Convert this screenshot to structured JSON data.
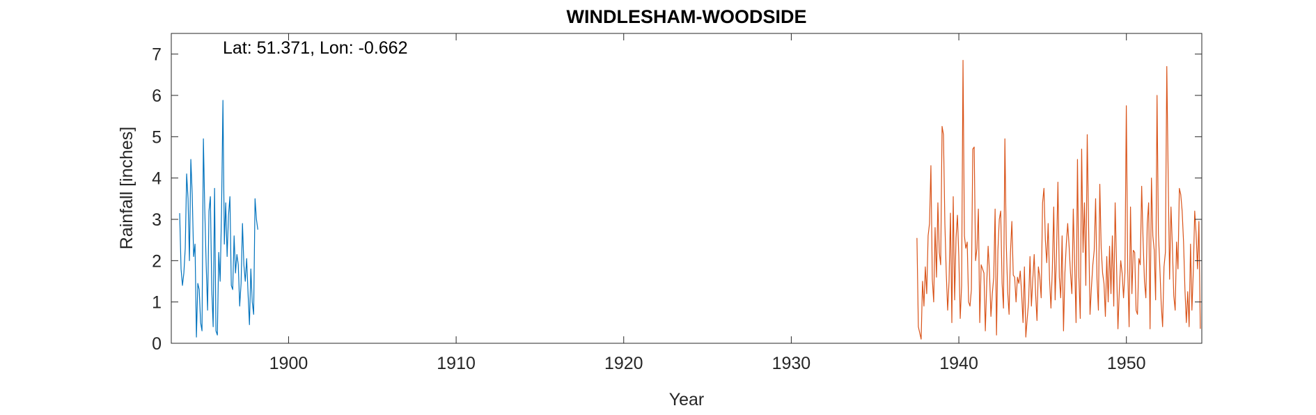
{
  "chart_data": {
    "type": "line",
    "title": "WINDLESHAM-WOODSIDE",
    "xlabel": "Year",
    "ylabel": "Rainfall [inches]",
    "annotation": "Lat: 51.371, Lon: -0.662",
    "xlim": [
      1893,
      1954.5
    ],
    "ylim": [
      0,
      7.5
    ],
    "xticks": [
      1900,
      1910,
      1920,
      1930,
      1940,
      1950
    ],
    "yticks": [
      0,
      1,
      2,
      3,
      4,
      5,
      6,
      7
    ],
    "grid": false,
    "colors": {
      "series1": "#0072BD",
      "series2": "#D95319"
    },
    "series": [
      {
        "x_start": 1893.5,
        "x_step": 0.0833,
        "values": [
          3.15,
          1.8,
          1.4,
          1.7,
          2.3,
          4.1,
          3.5,
          2.0,
          4.45,
          3.6,
          2.1,
          2.4,
          0.15,
          1.45,
          1.3,
          0.5,
          0.3,
          4.95,
          3.2,
          1.9,
          0.8,
          3.2,
          3.55,
          1.3,
          0.4,
          3.75,
          0.3,
          0.2,
          2.2,
          1.5,
          3.2,
          5.88,
          2.4,
          3.4,
          2.1,
          3.1,
          3.55,
          1.4,
          1.3,
          2.6,
          1.7,
          2.15,
          1.9,
          0.9,
          1.45,
          2.9,
          1.9,
          1.5,
          2.05,
          1.2,
          0.45,
          1.8,
          1.0,
          0.7,
          3.5,
          3.0,
          2.75
        ]
      },
      {
        "x_start": 1937.5,
        "x_step": 0.0833,
        "values": [
          2.55,
          0.4,
          0.25,
          0.1,
          1.5,
          0.9,
          1.85,
          1.2,
          2.6,
          2.9,
          4.3,
          1.55,
          1.0,
          2.8,
          1.6,
          3.4,
          2.2,
          1.9,
          5.25,
          5.05,
          2.9,
          1.7,
          0.8,
          1.5,
          3.15,
          0.5,
          3.55,
          1.05,
          2.55,
          3.1,
          2.1,
          0.6,
          1.4,
          6.85,
          2.6,
          2.3,
          2.45,
          1.0,
          0.9,
          1.3,
          4.7,
          4.75,
          2.0,
          2.3,
          3.25,
          0.5,
          1.9,
          1.8,
          1.7,
          0.3,
          1.45,
          2.35,
          1.7,
          0.65,
          1.2,
          1.6,
          3.25,
          0.2,
          2.25,
          3.0,
          3.2,
          1.45,
          0.85,
          4.95,
          2.4,
          1.25,
          0.7,
          2.2,
          2.95,
          1.65,
          1.6,
          1.0,
          1.6,
          1.45,
          1.75,
          1.2,
          0.5,
          1.85,
          0.15,
          0.6,
          1.0,
          2.1,
          0.9,
          1.55,
          2.15,
          1.2,
          0.55,
          1.85,
          1.6,
          1.1,
          3.4,
          3.75,
          2.5,
          1.95,
          2.9,
          1.55,
          0.85,
          1.8,
          3.3,
          1.05,
          2.2,
          3.9,
          1.6,
          1.1,
          2.6,
          0.3,
          1.7,
          2.4,
          2.9,
          2.35,
          1.7,
          1.2,
          3.25,
          1.9,
          0.5,
          4.45,
          1.6,
          0.6,
          4.7,
          2.2,
          3.4,
          1.4,
          5.05,
          2.8,
          0.7,
          1.35,
          1.9,
          2.25,
          3.5,
          1.55,
          0.8,
          3.85,
          2.3,
          1.7,
          1.45,
          0.65,
          2.1,
          1.0,
          2.35,
          1.2,
          2.6,
          0.9,
          3.4,
          1.9,
          0.35,
          1.3,
          2.0,
          1.7,
          1.1,
          1.7,
          5.75,
          1.8,
          0.4,
          3.3,
          1.2,
          2.25,
          2.2,
          0.8,
          0.7,
          2.05,
          1.9,
          3.8,
          2.5,
          1.5,
          1.1,
          2.9,
          3.4,
          0.35,
          4.0,
          2.6,
          2.25,
          1.05,
          6.0,
          2.65,
          1.85,
          0.95,
          0.4,
          1.85,
          2.2,
          6.7,
          4.0,
          1.55,
          3.3,
          2.35,
          1.15,
          0.8,
          2.45,
          1.8,
          3.75,
          3.6,
          3.2,
          2.45,
          1.3,
          0.5,
          1.25,
          0.4,
          2.4,
          0.8,
          1.75,
          3.2,
          2.65,
          1.8,
          2.95,
          0.35
        ]
      }
    ]
  }
}
